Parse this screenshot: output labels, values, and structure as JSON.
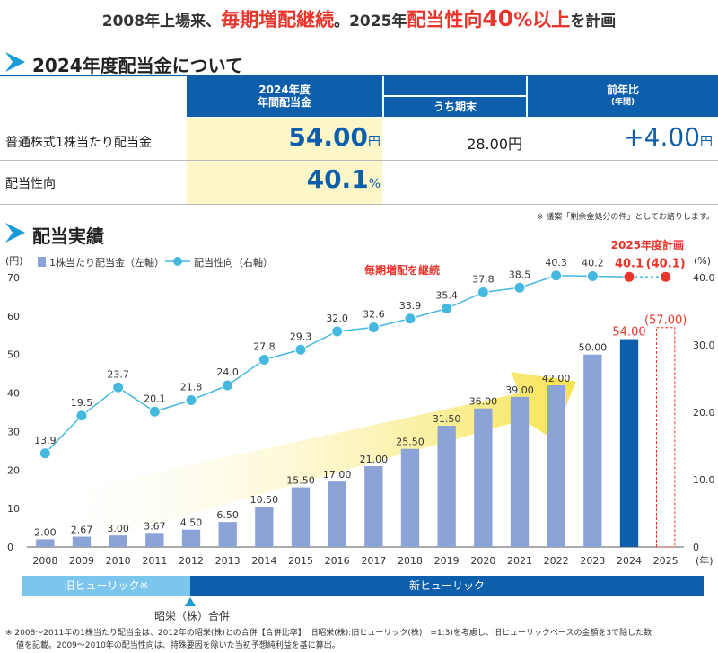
{
  "headline": {
    "part1": "2008年上場来、",
    "part2": "毎期増配継続",
    "part3": "。2025年",
    "part4": "配当性向",
    "part5": "40",
    "part6": "%以上",
    "part7": "を計画"
  },
  "section1": {
    "title": "2024年度配当金について"
  },
  "table": {
    "col1_header_line1": "2024年度",
    "col1_header_line2": "年間配当金",
    "col2_header": "うち期末",
    "col3_header_line1": "前年比",
    "col3_header_line2": "(年間)",
    "rows": [
      {
        "label": "普通株式1株当たり配当金",
        "annual": "54.00",
        "annual_unit": "円",
        "term_end": "28.00円",
        "yoy": "+4.00",
        "yoy_unit": "円"
      },
      {
        "label": "配当性向",
        "annual": "40.1",
        "annual_unit": "%"
      }
    ],
    "footnote": "※ 議案「剰余金処分の件」としてお諮りします。"
  },
  "section2": {
    "title": "配当実績"
  },
  "chart_data": {
    "type": "bar",
    "categories": [
      "2008",
      "2009",
      "2010",
      "2011",
      "2012",
      "2013",
      "2014",
      "2015",
      "2016",
      "2017",
      "2018",
      "2019",
      "2020",
      "2021",
      "2022",
      "2023",
      "2024",
      "2025"
    ],
    "series": [
      {
        "name": "1株当たり配当金（左軸）",
        "type": "bar",
        "values": [
          2.0,
          2.67,
          3.0,
          3.67,
          4.5,
          6.5,
          10.5,
          15.5,
          17.0,
          21.0,
          25.5,
          31.5,
          36.0,
          39.0,
          42.0,
          50.0,
          54.0,
          57.0
        ],
        "labels": [
          "2.00",
          "2.67",
          "3.00",
          "3.67",
          "4.50",
          "6.50",
          "10.50",
          "15.50",
          "17.00",
          "21.00",
          "25.50",
          "31.50",
          "36.00",
          "39.00",
          "42.00",
          "50.00",
          "54.00",
          "(57.00)"
        ]
      },
      {
        "name": "配当性向（右軸）",
        "type": "line",
        "values": [
          13.9,
          19.5,
          23.7,
          20.1,
          21.8,
          24.0,
          27.8,
          29.3,
          32.0,
          32.6,
          33.9,
          35.4,
          37.8,
          38.5,
          40.3,
          40.2,
          40.1,
          40.1
        ],
        "labels": [
          "13.9",
          "19.5",
          "23.7",
          "20.1",
          "21.8",
          "24.0",
          "27.8",
          "29.3",
          "32.0",
          "32.6",
          "33.9",
          "35.4",
          "37.8",
          "38.5",
          "40.3",
          "40.2",
          "40.1",
          "(40.1)"
        ]
      }
    ],
    "left_unit": "(円)",
    "right_unit": "(%)",
    "x_unit": "(年)",
    "left_ticks": [
      "0",
      "10",
      "20",
      "30",
      "40",
      "50",
      "60",
      "70"
    ],
    "right_ticks": [
      "0",
      "10.0",
      "20.0",
      "30.0",
      "40.0"
    ],
    "ylim_left": [
      0,
      70
    ],
    "ylim_right": [
      0,
      40
    ],
    "annotation_continue": "毎期増配を継続",
    "annotation_plan": "2025年度計画",
    "colors": {
      "bar": "#8ba3d6",
      "bar_2024": "#0e5fab",
      "line": "#45b8e0",
      "plan": "#e8362d",
      "arrow": "#f7e34f"
    },
    "grid": false,
    "legend": "top-left"
  },
  "timeline": {
    "old_label": "旧ヒューリック※",
    "new_label": "新ヒューリック",
    "merger_label": "昭栄（株）合併",
    "colors": {
      "old": "#7bc6ec",
      "new": "#0e5fab"
    }
  },
  "footer_note": {
    "line1": "※  2008〜2011年の1株当たり配当金は、2012年の昭栄(株)との合併【合併比率】　旧昭栄(株):旧ヒューリック(株)　=1:3)を考慮し、旧ヒューリックベースの金額を3で除した数",
    "line2": "値を記載。2009〜2010年の配当性向は、特殊要因を除いた当初予想純利益を基に算出。"
  }
}
